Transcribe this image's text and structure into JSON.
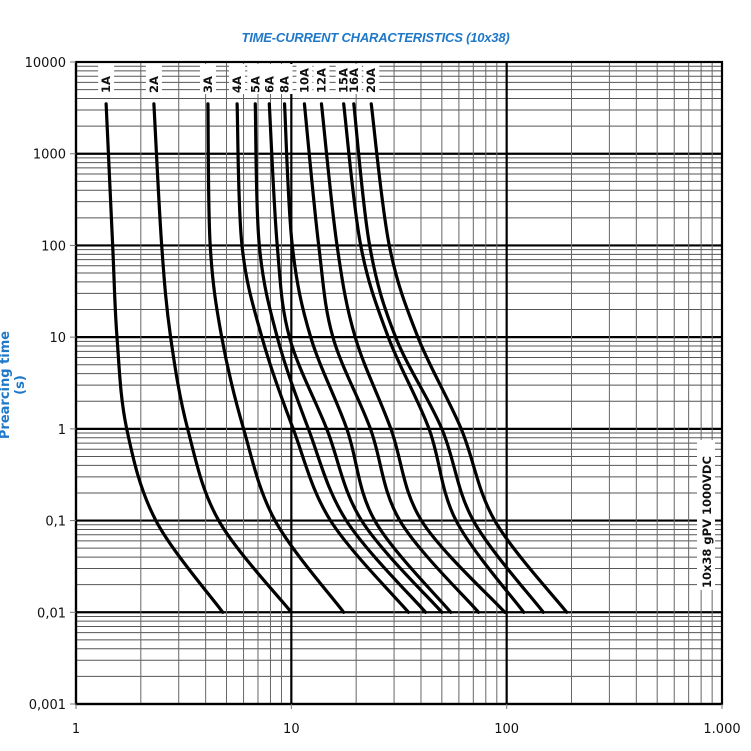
{
  "chart_data": {
    "type": "line",
    "title": "TIME-CURRENT CHARACTERISTICS (10x38)",
    "xlabel": "",
    "ylabel": "Prearcing time (s)",
    "xscale": "log",
    "yscale": "log",
    "xlim": [
      1,
      1000
    ],
    "ylim": [
      0.001,
      10000
    ],
    "x_ticks": [
      "1",
      "10",
      "100",
      "1.000"
    ],
    "y_ticks": [
      "10000",
      "1000",
      "100",
      "10",
      "1",
      "0,1",
      "0,01",
      "0,001"
    ],
    "grid": true,
    "legend_position": "inline-top",
    "annotation": "10x38 gPV 1000VDC",
    "title_color": "#1f78c8",
    "series": [
      {
        "name": "1A",
        "points": [
          [
            1.38,
            3500
          ],
          [
            1.48,
            100
          ],
          [
            1.55,
            10
          ],
          [
            1.72,
            1
          ],
          [
            2.35,
            0.1
          ],
          [
            4.8,
            0.01
          ]
        ]
      },
      {
        "name": "2A",
        "points": [
          [
            2.3,
            3500
          ],
          [
            2.5,
            100
          ],
          [
            2.75,
            10
          ],
          [
            3.3,
            1
          ],
          [
            4.6,
            0.1
          ],
          [
            10.0,
            0.01
          ]
        ]
      },
      {
        "name": "3A",
        "points": [
          [
            4.1,
            3500
          ],
          [
            4.2,
            100
          ],
          [
            4.75,
            10
          ],
          [
            6.0,
            1
          ],
          [
            8.4,
            0.1
          ],
          [
            17.5,
            0.01
          ]
        ]
      },
      {
        "name": "4A",
        "points": [
          [
            5.6,
            3500
          ],
          [
            5.9,
            100
          ],
          [
            7.3,
            10
          ],
          [
            10.2,
            1
          ],
          [
            15.2,
            0.1
          ],
          [
            35.0,
            0.01
          ]
        ]
      },
      {
        "name": "5A",
        "points": [
          [
            6.8,
            3500
          ],
          [
            7.1,
            100
          ],
          [
            8.6,
            10
          ],
          [
            12.0,
            1
          ],
          [
            18.0,
            0.1
          ],
          [
            42.0,
            0.01
          ]
        ]
      },
      {
        "name": "6A",
        "points": [
          [
            7.9,
            3500
          ],
          [
            8.6,
            100
          ],
          [
            9.8,
            10
          ],
          [
            14.6,
            1
          ],
          [
            21.2,
            0.1
          ],
          [
            50.0,
            0.01
          ]
        ]
      },
      {
        "name": "8A",
        "points": [
          [
            9.3,
            3500
          ],
          [
            10.1,
            100
          ],
          [
            12.3,
            10
          ],
          [
            18.1,
            1
          ],
          [
            24.4,
            0.1
          ],
          [
            55.0,
            0.01
          ]
        ]
      },
      {
        "name": "10A",
        "points": [
          [
            11.5,
            3500
          ],
          [
            13.4,
            100
          ],
          [
            15.6,
            10
          ],
          [
            23.3,
            1
          ],
          [
            31.9,
            0.1
          ],
          [
            74.0,
            0.01
          ]
        ]
      },
      {
        "name": "12A",
        "points": [
          [
            13.8,
            3500
          ],
          [
            16.3,
            100
          ],
          [
            19.8,
            10
          ],
          [
            29.0,
            1
          ],
          [
            40.2,
            0.1
          ],
          [
            98.0,
            0.01
          ]
        ]
      },
      {
        "name": "15A",
        "points": [
          [
            17.5,
            3500
          ],
          [
            21.0,
            100
          ],
          [
            28.2,
            10
          ],
          [
            43.6,
            1
          ],
          [
            58.2,
            0.1
          ],
          [
            120.0,
            0.01
          ]
        ]
      },
      {
        "name": "16A",
        "points": [
          [
            19.5,
            3500
          ],
          [
            23.1,
            100
          ],
          [
            30.5,
            10
          ],
          [
            50.0,
            1
          ],
          [
            70.0,
            0.1
          ],
          [
            148.0,
            0.01
          ]
        ]
      },
      {
        "name": "20A",
        "points": [
          [
            23.5,
            3500
          ],
          [
            28.5,
            100
          ],
          [
            38.7,
            10
          ],
          [
            61.5,
            1
          ],
          [
            88.0,
            0.1
          ],
          [
            190.0,
            0.01
          ]
        ]
      }
    ]
  }
}
